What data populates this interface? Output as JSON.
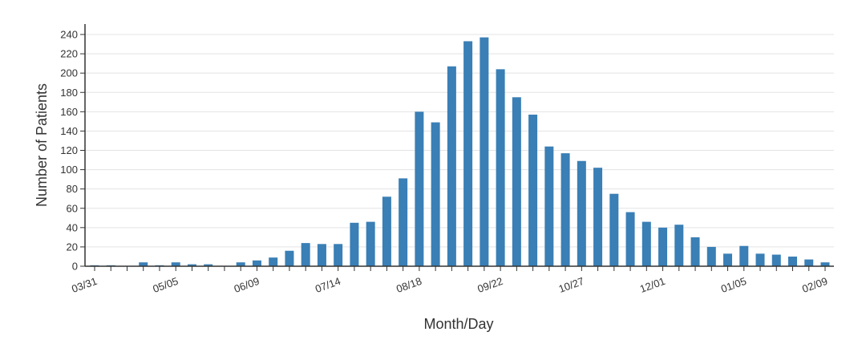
{
  "chart_data": {
    "type": "bar",
    "xlabel": "Month/Day",
    "ylabel": "Number of Patients",
    "ylim": [
      0,
      240
    ],
    "yticks": [
      0,
      20,
      40,
      60,
      80,
      100,
      120,
      140,
      160,
      180,
      200,
      220,
      240
    ],
    "grid": true,
    "bar_color": "#3a7fb5",
    "x_tick_labels": [
      {
        "index": 0,
        "label": "03/31"
      },
      {
        "index": 5,
        "label": "05/05"
      },
      {
        "index": 10,
        "label": "06/09"
      },
      {
        "index": 15,
        "label": "07/14"
      },
      {
        "index": 20,
        "label": "08/18"
      },
      {
        "index": 25,
        "label": "09/22"
      },
      {
        "index": 30,
        "label": "10/27"
      },
      {
        "index": 35,
        "label": "12/01"
      },
      {
        "index": 40,
        "label": "01/05"
      },
      {
        "index": 45,
        "label": "02/09"
      }
    ],
    "values": [
      1,
      1,
      0,
      4,
      1,
      4,
      2,
      2,
      0,
      4,
      6,
      9,
      16,
      24,
      23,
      23,
      45,
      46,
      72,
      91,
      160,
      149,
      207,
      233,
      237,
      204,
      175,
      157,
      124,
      117,
      109,
      102,
      75,
      56,
      46,
      40,
      43,
      30,
      20,
      13,
      21,
      13,
      12,
      10,
      7,
      4
    ]
  }
}
